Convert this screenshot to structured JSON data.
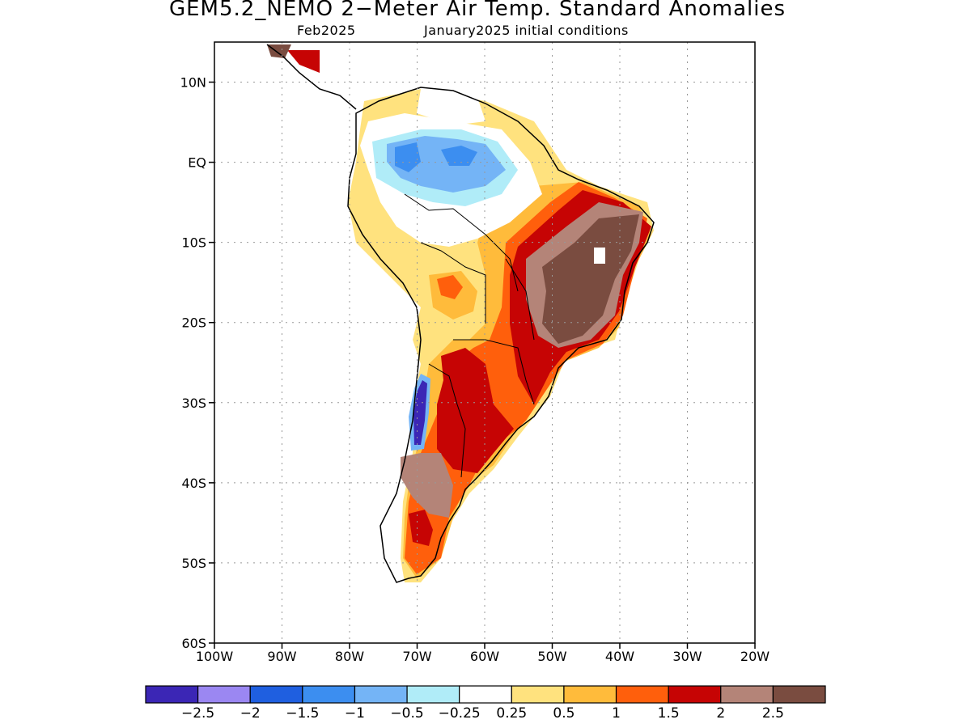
{
  "title": "GEM5.2_NEMO 2−Meter Air Temp. Standard Anomalies",
  "subtitle_left": "Feb2025",
  "subtitle_right": "January2025 initial conditions",
  "map": {
    "lon_range": [
      -100,
      -20
    ],
    "lat_range": [
      -60,
      15
    ],
    "lat_ticks": [
      "10N",
      "EQ",
      "10S",
      "20S",
      "30S",
      "40S",
      "50S",
      "60S"
    ],
    "lon_ticks": [
      "100W",
      "90W",
      "80W",
      "70W",
      "60W",
      "50W",
      "40W",
      "30W",
      "20W"
    ],
    "gridlines": "dotted"
  },
  "colorbar": {
    "colors": [
      "#3b26b5",
      "#9b87f2",
      "#1f5fe0",
      "#3c8ef0",
      "#74b4f6",
      "#b0ecf8",
      "#ffffff",
      "#ffe27e",
      "#ffbb3b",
      "#ff5f0c",
      "#c60404",
      "#b48478",
      "#7a4c40"
    ],
    "labels": [
      "−2.5",
      "−2",
      "−1.5",
      "−1",
      "−0.5",
      "−0.25",
      "0.25",
      "0.5",
      "1",
      "1.5",
      "2",
      "2.5"
    ]
  }
}
